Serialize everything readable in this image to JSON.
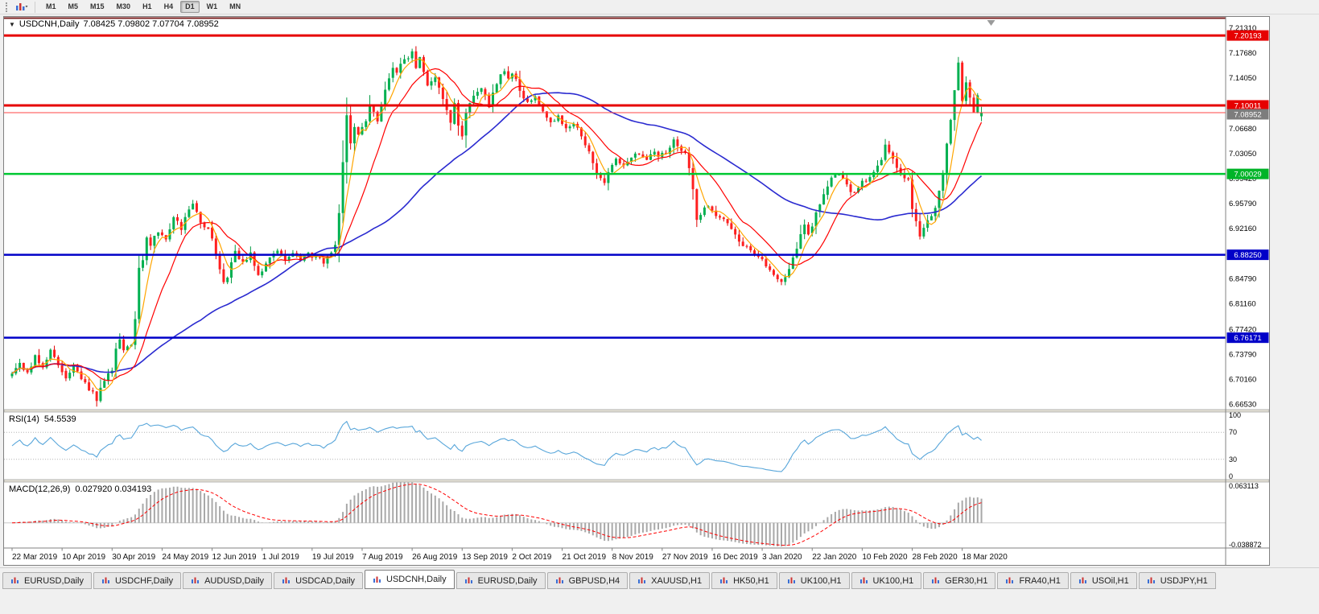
{
  "toolbar": {
    "timeframes": [
      "M1",
      "M5",
      "M15",
      "M30",
      "H1",
      "H4",
      "D1",
      "W1",
      "MN"
    ],
    "active_timeframe": "D1"
  },
  "chart": {
    "symbol": "USDCNH,Daily",
    "ohlc_text": "7.08425 7.09802 7.07704 7.08952",
    "yaxis": {
      "min": 6.657,
      "max": 7.229,
      "ticks": [
        "7.21310",
        "7.17680",
        "7.14050",
        "7.06680",
        "7.03050",
        "6.99420",
        "6.95790",
        "6.92160",
        "6.84790",
        "6.81160",
        "6.77420",
        "6.73790",
        "6.70160",
        "6.66530"
      ]
    },
    "levels": [
      {
        "label": "7.20193",
        "value": 7.20193,
        "color": "#e60000",
        "badge": "#e60000",
        "width": 3
      },
      {
        "label": "7.10011",
        "value": 7.10011,
        "color": "#e60000",
        "badge": "#e60000",
        "width": 3
      },
      {
        "label": "7.00029",
        "value": 7.00029,
        "color": "#00c832",
        "badge": "#00b428",
        "width": 2.5
      },
      {
        "label": "6.88250",
        "value": 6.8825,
        "color": "#0000c8",
        "badge": "#0000c8",
        "width": 2.5
      },
      {
        "label": "6.76171",
        "value": 6.76171,
        "color": "#0000c8",
        "badge": "#0000c8",
        "width": 2.5
      }
    ],
    "bid": {
      "label": "7.08952",
      "value": 7.08952,
      "line_color": "#ff4545",
      "badge": "#7d7d7d"
    },
    "top_line_color": "#7a2020",
    "colors": {
      "up": "#00b050",
      "down": "#ff1f1f",
      "wick_up": "#009a40",
      "wick_down": "#dd0000",
      "ma_fast": "#ffa500",
      "ma_med": "#ff0000",
      "ma_slow": "#2a2ad0"
    }
  },
  "rsi": {
    "label": "RSI(14)",
    "value": "54.5539",
    "ticks": [
      "100",
      "70",
      "30",
      "0"
    ],
    "guides": [
      70,
      30
    ],
    "color": "#58a6da"
  },
  "macd": {
    "label": "MACD(12,26,9)",
    "value": "0.027920 0.034193",
    "ticks": [
      "0.063113",
      "-0.038872"
    ],
    "range": {
      "min": -0.038872,
      "max": 0.063113
    },
    "hist_color": "#a8a8a8",
    "signal_color": "#ff0000"
  },
  "dates": [
    "22 Mar 2019",
    "10 Apr 2019",
    "30 Apr 2019",
    "24 May 2019",
    "12 Jun 2019",
    "1 Jul 2019",
    "19 Jul 2019",
    "7 Aug 2019",
    "26 Aug 2019",
    "13 Sep 2019",
    "2 Oct 2019",
    "21 Oct 2019",
    "8 Nov 2019",
    "27 Nov 2019",
    "16 Dec 2019",
    "3 Jan 2020",
    "22 Jan 2020",
    "10 Feb 2020",
    "28 Feb 2020",
    "18 Mar 2020"
  ],
  "tabs": {
    "items": [
      "EURUSD,Daily",
      "USDCHF,Daily",
      "AUDUSD,Daily",
      "USDCAD,Daily",
      "USDCNH,Daily",
      "EURUSD,Daily",
      "GBPUSD,H4",
      "XAUUSD,H1",
      "HK50,H1",
      "UK100,H1",
      "UK100,H1",
      "GER30,H1",
      "FRA40,H1",
      "USOil,H1",
      "USDJPY,H1"
    ],
    "active_index": 4
  },
  "chart_data": {
    "type": "candlestick",
    "symbol": "USDCNH",
    "timeframe": "D1",
    "title": "USDCNH,Daily",
    "candle_count": 253,
    "date_label_step": 13,
    "visible_price_range": {
      "min": 6.657,
      "max": 7.229
    },
    "last_candle": {
      "o": 7.08425,
      "h": 7.09802,
      "l": 7.07704,
      "c": 7.08952
    },
    "indicators": {
      "ma_fast": 5,
      "ma_med": 13,
      "ma_slow": 50,
      "rsi_period": 14,
      "macd": [
        12,
        26,
        9
      ]
    },
    "close_keyframes": [
      [
        0,
        6.712
      ],
      [
        2,
        6.728
      ],
      [
        4,
        6.708
      ],
      [
        6,
        6.735
      ],
      [
        8,
        6.718
      ],
      [
        10,
        6.742
      ],
      [
        12,
        6.722
      ],
      [
        14,
        6.705
      ],
      [
        16,
        6.722
      ],
      [
        18,
        6.7
      ],
      [
        20,
        6.688
      ],
      [
        22,
        6.672
      ],
      [
        24,
        6.7
      ],
      [
        26,
        6.716
      ],
      [
        27,
        6.745
      ],
      [
        28,
        6.762
      ],
      [
        29,
        6.742
      ],
      [
        31,
        6.752
      ],
      [
        32,
        6.79
      ],
      [
        33,
        6.862
      ],
      [
        34,
        6.878
      ],
      [
        35,
        6.908
      ],
      [
        36,
        6.898
      ],
      [
        38,
        6.916
      ],
      [
        40,
        6.908
      ],
      [
        42,
        6.936
      ],
      [
        44,
        6.922
      ],
      [
        46,
        6.948
      ],
      [
        47,
        6.956
      ],
      [
        49,
        6.932
      ],
      [
        51,
        6.918
      ],
      [
        52,
        6.905
      ],
      [
        53,
        6.882
      ],
      [
        54,
        6.858
      ],
      [
        55,
        6.846
      ],
      [
        56,
        6.852
      ],
      [
        57,
        6.872
      ],
      [
        58,
        6.885
      ],
      [
        60,
        6.872
      ],
      [
        62,
        6.884
      ],
      [
        64,
        6.85
      ],
      [
        65,
        6.858
      ],
      [
        67,
        6.88
      ],
      [
        69,
        6.886
      ],
      [
        71,
        6.878
      ],
      [
        73,
        6.884
      ],
      [
        75,
        6.877
      ],
      [
        77,
        6.883
      ],
      [
        79,
        6.878
      ],
      [
        81,
        6.873
      ],
      [
        83,
        6.884
      ],
      [
        84,
        6.895
      ],
      [
        85,
        6.942
      ],
      [
        86,
        7.02
      ],
      [
        87,
        7.088
      ],
      [
        88,
        7.048
      ],
      [
        89,
        7.066
      ],
      [
        90,
        7.058
      ],
      [
        92,
        7.076
      ],
      [
        93,
        7.098
      ],
      [
        95,
        7.078
      ],
      [
        97,
        7.124
      ],
      [
        99,
        7.158
      ],
      [
        100,
        7.148
      ],
      [
        101,
        7.162
      ],
      [
        103,
        7.168
      ],
      [
        104,
        7.182
      ],
      [
        105,
        7.156
      ],
      [
        106,
        7.174
      ],
      [
        107,
        7.148
      ],
      [
        108,
        7.132
      ],
      [
        110,
        7.142
      ],
      [
        112,
        7.112
      ],
      [
        114,
        7.078
      ],
      [
        115,
        7.102
      ],
      [
        116,
        7.072
      ],
      [
        117,
        7.058
      ],
      [
        118,
        7.092
      ],
      [
        120,
        7.112
      ],
      [
        122,
        7.122
      ],
      [
        124,
        7.102
      ],
      [
        126,
        7.132
      ],
      [
        128,
        7.152
      ],
      [
        129,
        7.136
      ],
      [
        130,
        7.148
      ],
      [
        132,
        7.122
      ],
      [
        134,
        7.102
      ],
      [
        136,
        7.112
      ],
      [
        138,
        7.092
      ],
      [
        140,
        7.072
      ],
      [
        142,
        7.082
      ],
      [
        144,
        7.066
      ],
      [
        146,
        7.072
      ],
      [
        148,
        7.058
      ],
      [
        150,
        7.032
      ],
      [
        152,
        7.002
      ],
      [
        154,
        6.988
      ],
      [
        155,
        7.006
      ],
      [
        157,
        7.022
      ],
      [
        159,
        7.012
      ],
      [
        161,
        7.026
      ],
      [
        163,
        7.032
      ],
      [
        165,
        7.022
      ],
      [
        167,
        7.034
      ],
      [
        168,
        7.026
      ],
      [
        170,
        7.032
      ],
      [
        172,
        7.048
      ],
      [
        173,
        7.042
      ],
      [
        175,
        7.032
      ],
      [
        176,
        7.008
      ],
      [
        177,
        6.978
      ],
      [
        178,
        6.932
      ],
      [
        180,
        6.952
      ],
      [
        181,
        6.956
      ],
      [
        183,
        6.942
      ],
      [
        185,
        6.932
      ],
      [
        187,
        6.922
      ],
      [
        189,
        6.902
      ],
      [
        191,
        6.892
      ],
      [
        193,
        6.882
      ],
      [
        194,
        6.882
      ],
      [
        196,
        6.866
      ],
      [
        198,
        6.852
      ],
      [
        200,
        6.842
      ],
      [
        202,
        6.862
      ],
      [
        204,
        6.892
      ],
      [
        206,
        6.928
      ],
      [
        207,
        6.912
      ],
      [
        209,
        6.942
      ],
      [
        211,
        6.972
      ],
      [
        213,
        6.992
      ],
      [
        215,
        7.002
      ],
      [
        217,
        6.982
      ],
      [
        219,
        6.972
      ],
      [
        220,
        6.982
      ],
      [
        222,
        6.992
      ],
      [
        224,
        7.002
      ],
      [
        226,
        7.022
      ],
      [
        227,
        7.042
      ],
      [
        229,
        7.022
      ],
      [
        231,
        7.002
      ],
      [
        233,
        6.992
      ],
      [
        234,
        6.952
      ],
      [
        236,
        6.912
      ],
      [
        238,
        6.932
      ],
      [
        240,
        6.952
      ],
      [
        242,
        7.002
      ],
      [
        243,
        7.042
      ],
      [
        244,
        7.082
      ],
      [
        245,
        7.122
      ],
      [
        246,
        7.162
      ],
      [
        247,
        7.108
      ],
      [
        248,
        7.135
      ],
      [
        249,
        7.112
      ],
      [
        250,
        7.092
      ],
      [
        251,
        7.118
      ],
      [
        252,
        7.0895
      ]
    ]
  }
}
